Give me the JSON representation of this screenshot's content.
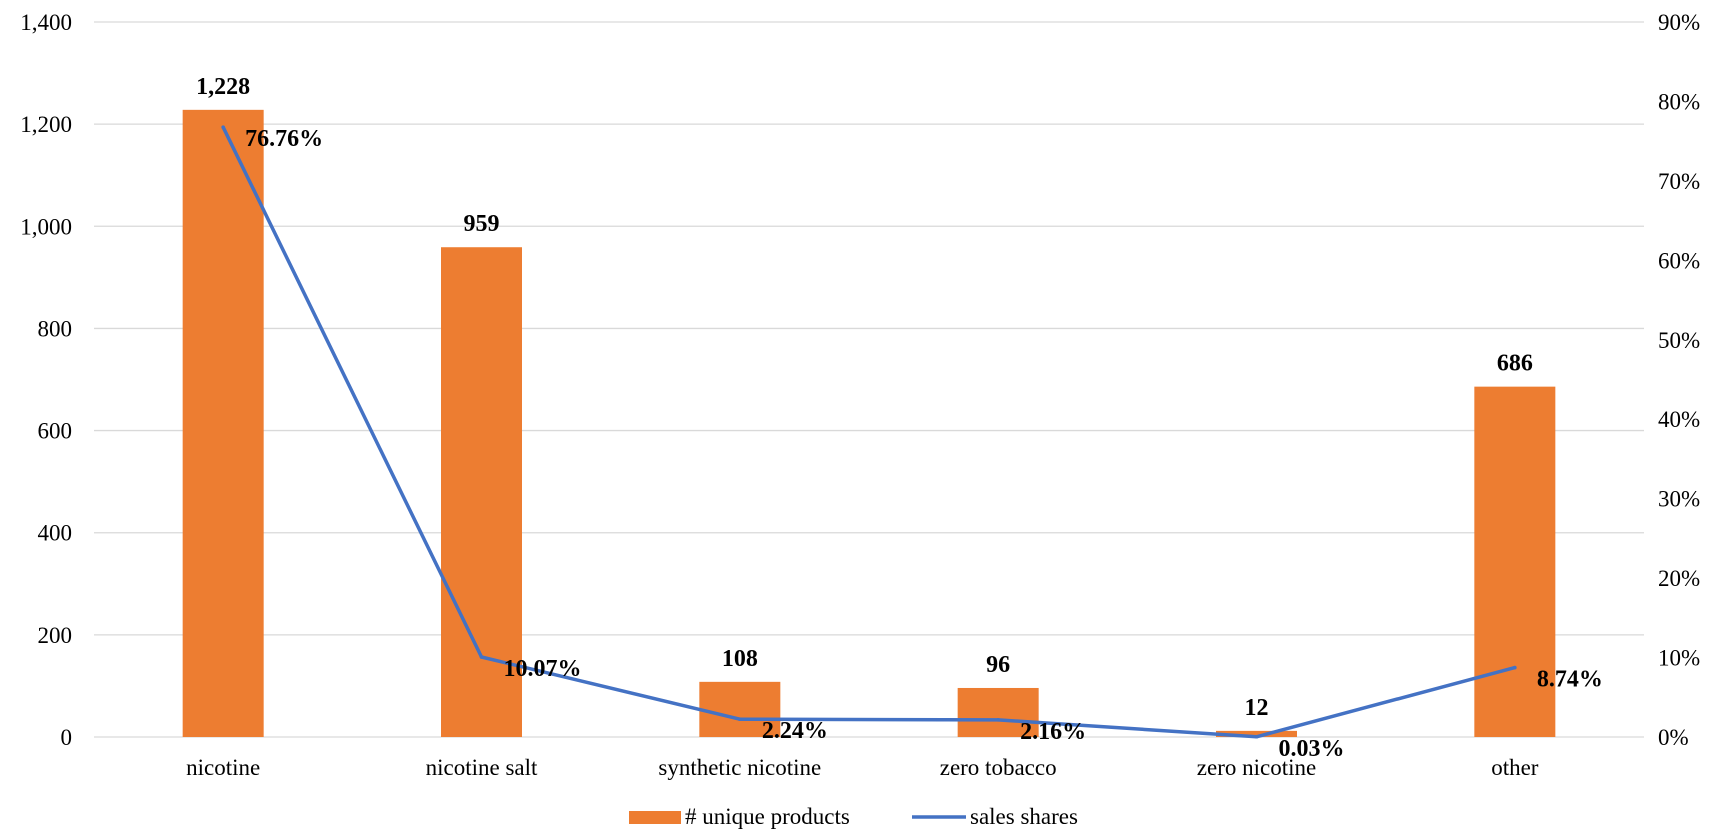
{
  "chart_data": {
    "type": "bar",
    "categories": [
      "nicotine",
      "nicotine salt",
      "synthetic nicotine",
      "zero tobacco",
      "zero nicotine",
      "other"
    ],
    "series": [
      {
        "name": "# unique products",
        "type": "bar",
        "axis": "left",
        "color": "#ED7D31",
        "values": [
          1228,
          959,
          108,
          96,
          12,
          686
        ],
        "labels": [
          "1,228",
          "959",
          "108",
          "96",
          "12",
          "686"
        ]
      },
      {
        "name": "sales shares",
        "type": "line",
        "axis": "right",
        "color": "#4472C4",
        "values": [
          76.76,
          10.07,
          2.24,
          2.16,
          0.03,
          8.74
        ],
        "labels": [
          "76.76%",
          "10.07%",
          "2.24%",
          "2.16%",
          "0.03%",
          "8.74%"
        ]
      }
    ],
    "y_left": {
      "ylim": [
        0,
        1400
      ],
      "ticks": [
        0,
        200,
        400,
        600,
        800,
        1000,
        1200,
        1400
      ],
      "tick_labels": [
        "0",
        "200",
        "400",
        "600",
        "800",
        "1,000",
        "1,200",
        "1,400"
      ]
    },
    "y_right": {
      "ylim": [
        0,
        90
      ],
      "ticks": [
        0,
        10,
        20,
        30,
        40,
        50,
        60,
        70,
        80,
        90
      ],
      "tick_labels": [
        "0%",
        "10%",
        "20%",
        "30%",
        "40%",
        "50%",
        "60%",
        "70%",
        "80%",
        "90%"
      ]
    },
    "grid": true,
    "legend_position": "bottom",
    "title": "",
    "xlabel": "",
    "ylabel": ""
  }
}
